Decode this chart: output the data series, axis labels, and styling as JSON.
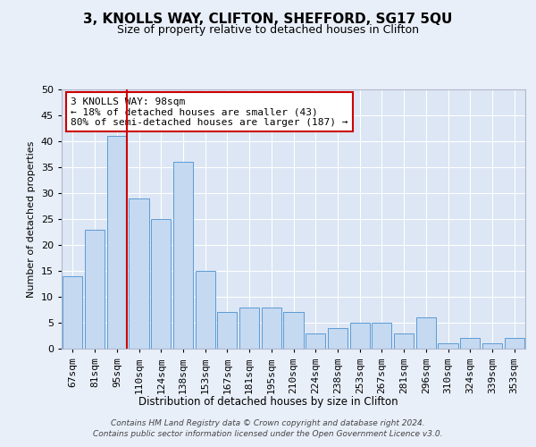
{
  "title": "3, KNOLLS WAY, CLIFTON, SHEFFORD, SG17 5QU",
  "subtitle": "Size of property relative to detached houses in Clifton",
  "xlabel": "Distribution of detached houses by size in Clifton",
  "ylabel": "Number of detached properties",
  "categories": [
    "67sqm",
    "81sqm",
    "95sqm",
    "110sqm",
    "124sqm",
    "138sqm",
    "153sqm",
    "167sqm",
    "181sqm",
    "195sqm",
    "210sqm",
    "224sqm",
    "238sqm",
    "253sqm",
    "267sqm",
    "281sqm",
    "296sqm",
    "310sqm",
    "324sqm",
    "339sqm",
    "353sqm"
  ],
  "values": [
    14,
    23,
    41,
    29,
    25,
    36,
    15,
    7,
    8,
    8,
    7,
    3,
    4,
    5,
    5,
    3,
    6,
    1,
    2,
    1,
    2
  ],
  "bar_color": "#c5d9f1",
  "bar_edgecolor": "#5b9bd5",
  "background_color": "#e9eff9",
  "plot_bg_color": "#dce6f4",
  "grid_color": "#ffffff",
  "vline_x_index": 2,
  "vline_color": "#cc0000",
  "annotation_text": "3 KNOLLS WAY: 98sqm\n← 18% of detached houses are smaller (43)\n80% of semi-detached houses are larger (187) →",
  "annotation_box_edgecolor": "#cc0000",
  "ylim": [
    0,
    50
  ],
  "yticks": [
    0,
    5,
    10,
    15,
    20,
    25,
    30,
    35,
    40,
    45,
    50
  ],
  "footer_line1": "Contains HM Land Registry data © Crown copyright and database right 2024.",
  "footer_line2": "Contains public sector information licensed under the Open Government Licence v3.0."
}
